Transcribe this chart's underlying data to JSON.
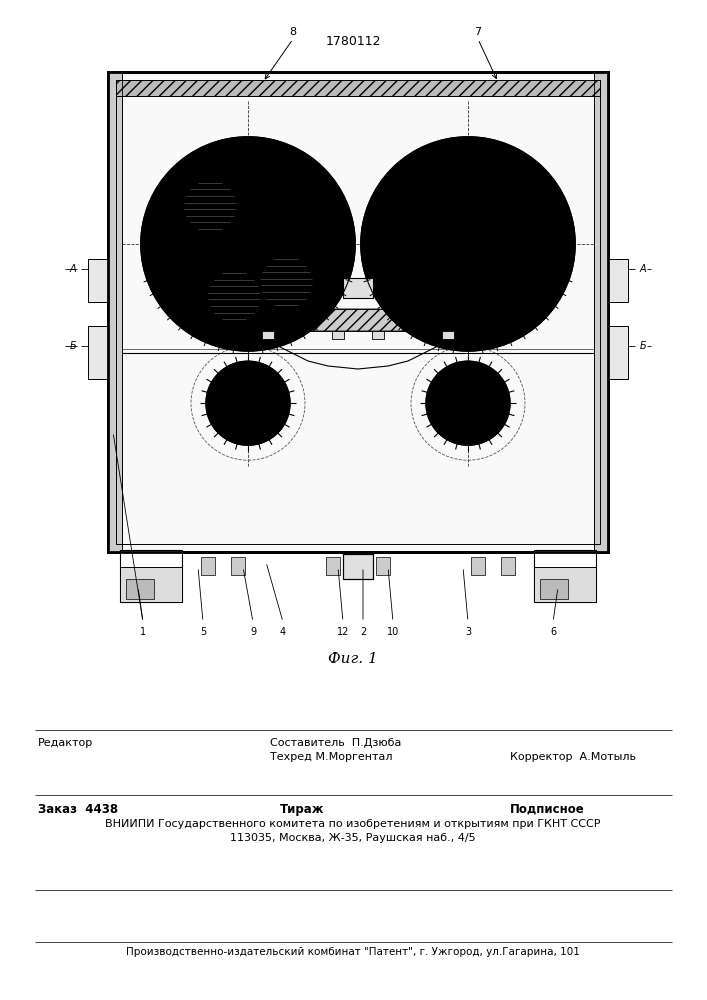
{
  "patent_number": "1780112",
  "fig_label": "Фиг. 1",
  "bg_color": "#ffffff",
  "line_color": "#000000",
  "footer": {
    "col1_line1": "Редактор",
    "col2_line1": "Составитель  П.Дзюба",
    "col2_line2": "Техред М.Моргентал",
    "col3_line2": "Корректор  А.Мотыль",
    "row2_col1": "Заказ  4438",
    "row2_col2": "Тираж",
    "row2_col3": "Подписное",
    "vniiipi_line1": "ВНИИПИ Государственного комитета по изобретениям и открытиям при ГКНТ СССР",
    "vniiipi_line2": "113035, Москва, Ж-35, Раушская наб., 4/5",
    "patent_line": "Производственно-издательский комбинат \"Патент\", г. Ужгород, ул.Гагарина, 101"
  }
}
